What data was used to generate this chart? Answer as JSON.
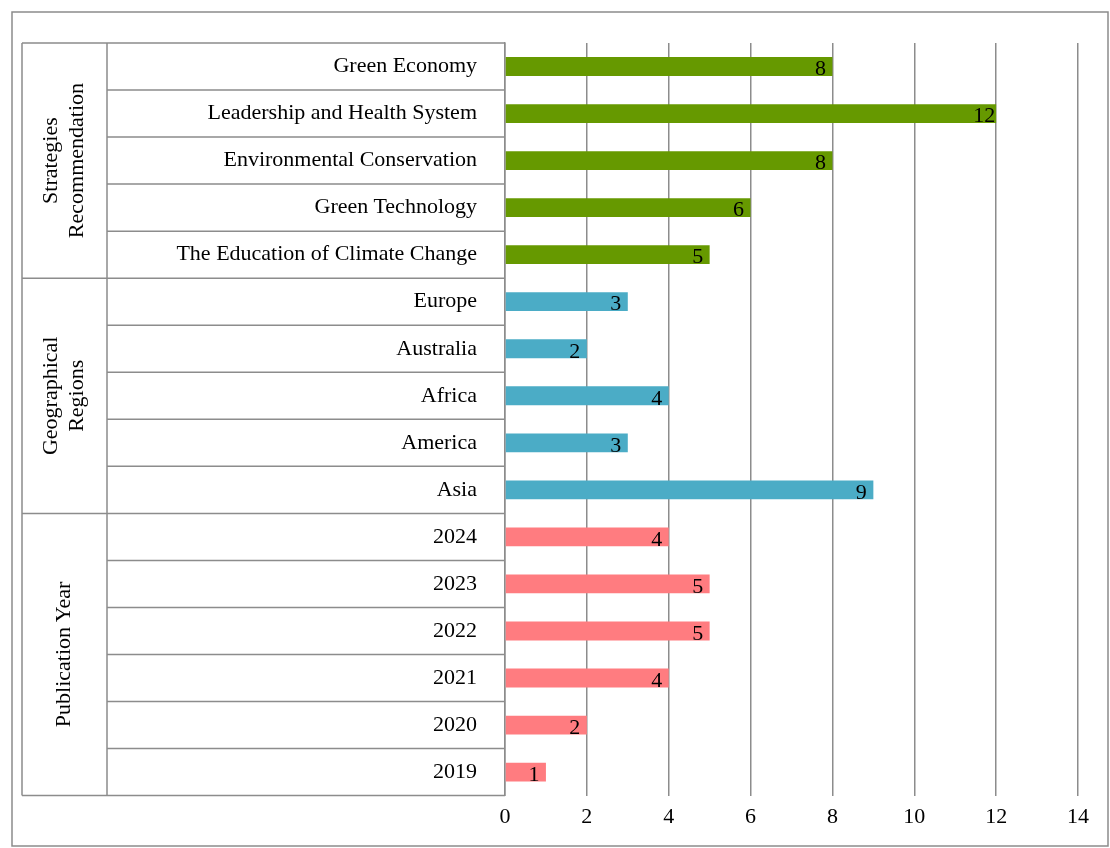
{
  "chart_data": {
    "type": "bar",
    "orientation": "horizontal",
    "stacked": true,
    "categories": [
      "Green Economy",
      "Leadership and Health System",
      "Environmental Conservation",
      "Green Technology",
      "The Education of Climate Change",
      "Europe",
      "Australia",
      "Africa",
      "America",
      "Asia",
      "2024",
      "2023",
      "2022",
      "2021",
      "2020",
      "2019"
    ],
    "series": [
      {
        "color": "#669900",
        "values": [
          8,
          12,
          8,
          6,
          5,
          null,
          null,
          null,
          null,
          null,
          null,
          null,
          null,
          null,
          null,
          null
        ]
      },
      {
        "color": "#4bacc6",
        "values": [
          null,
          null,
          null,
          null,
          null,
          3,
          2,
          4,
          3,
          9,
          null,
          null,
          null,
          null,
          null,
          null
        ]
      },
      {
        "color": "#ff7c80",
        "values": [
          null,
          null,
          null,
          null,
          null,
          null,
          null,
          null,
          null,
          null,
          4,
          5,
          5,
          4,
          2,
          1
        ]
      }
    ],
    "annotations": [
      "Strategies Recommendation",
      "Geographical Regions",
      "Publication Year"
    ],
    "xlim": [
      0,
      14
    ],
    "xticks": [
      0,
      2,
      4,
      6,
      8,
      10,
      12,
      14
    ],
    "grid": "x",
    "legend": false,
    "data_labels": true
  }
}
